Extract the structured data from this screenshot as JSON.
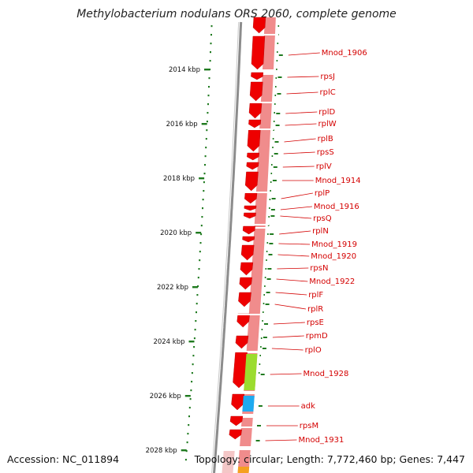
{
  "title": "Methylobacterium nodulans ORS 2060, complete genome",
  "footer": {
    "accession": "Accession: NC_011894",
    "stats": "Topology: circular; Length: 7,772,460 bp; Genes: 7,447"
  },
  "ticks": [
    "2014 kbp",
    "2016 kbp",
    "2018 kbp",
    "2020 kbp",
    "2022 kbp",
    "2024 kbp",
    "2026 kbp",
    "2028 kbp"
  ],
  "genes": [
    "Mnod_1906",
    "rpsJ",
    "rplC",
    "rplD",
    "rplW",
    "rplB",
    "rpsS",
    "rplV",
    "Mnod_1914",
    "rplP",
    "Mnod_1916",
    "rpsQ",
    "rplN",
    "Mnod_1919",
    "Mnod_1920",
    "rpsN",
    "Mnod_1922",
    "rplF",
    "rplR",
    "rpsE",
    "rpmD",
    "rplO",
    "Mnod_1928",
    "adk",
    "rpsM",
    "Mnod_1931"
  ],
  "colors": {
    "cds_forward": "#ee0000",
    "cds_reverse": "#f08c8c",
    "label": "#d40000",
    "tick": "#1f7a1f",
    "backbone": "#8c8c8c",
    "feature_green": "#9bdc2e",
    "feature_cyan": "#1eaaf0",
    "feature_orange": "#f5a020"
  }
}
